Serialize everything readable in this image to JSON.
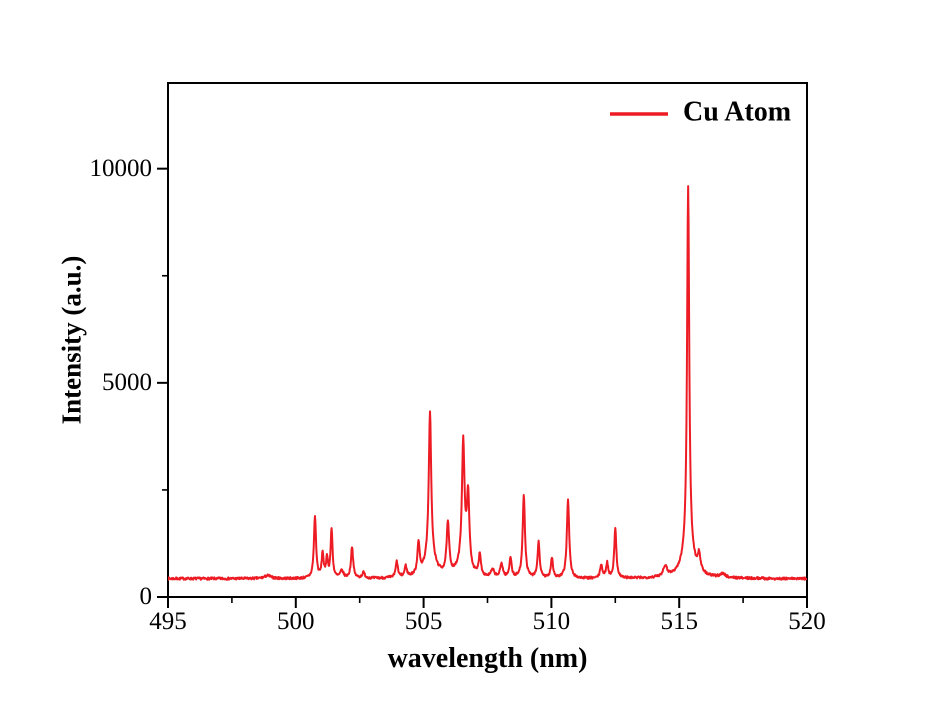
{
  "figure": {
    "legend": {
      "label": "Cu Atom"
    },
    "x_axis": {
      "label": "wavelength (nm)",
      "tick_labels": [
        "495",
        "500",
        "505",
        "510",
        "515",
        "520"
      ]
    },
    "y_axis": {
      "label": "Intensity (a.u.)",
      "tick_labels": [
        "0",
        "5000",
        "10000"
      ]
    }
  },
  "chart_data": {
    "type": "line",
    "title": "",
    "xlabel": "wavelength (nm)",
    "ylabel": "Intensity (a.u.)",
    "series_name": "Cu Atom",
    "line_color": "#ed1c24",
    "axis_color": "#000000",
    "xlim": [
      495,
      520
    ],
    "ylim": [
      0,
      12000
    ],
    "x_major_ticks": [
      495,
      500,
      505,
      510,
      515,
      520
    ],
    "x_minor_ticks": [
      497.5,
      502.5,
      507.5,
      512.5,
      517.5
    ],
    "y_major_ticks": [
      0,
      5000,
      10000
    ],
    "y_minor_ticks": [
      2500,
      7500
    ],
    "grid": false,
    "legend_position": "top-right-inside",
    "baseline_intensity": 430,
    "noise_amplitude": 28,
    "peaks": [
      {
        "x": 498.9,
        "apex": 500,
        "fwhm": 0.3
      },
      {
        "x": 500.75,
        "apex": 1870,
        "fwhm": 0.1
      },
      {
        "x": 501.05,
        "apex": 1000,
        "fwhm": 0.09
      },
      {
        "x": 501.22,
        "apex": 900,
        "fwhm": 0.08
      },
      {
        "x": 501.4,
        "apex": 1570,
        "fwhm": 0.09
      },
      {
        "x": 501.8,
        "apex": 600,
        "fwhm": 0.15
      },
      {
        "x": 502.2,
        "apex": 1170,
        "fwhm": 0.1
      },
      {
        "x": 502.65,
        "apex": 560,
        "fwhm": 0.12
      },
      {
        "x": 503.95,
        "apex": 800,
        "fwhm": 0.1
      },
      {
        "x": 504.3,
        "apex": 680,
        "fwhm": 0.1
      },
      {
        "x": 504.8,
        "apex": 1170,
        "fwhm": 0.1
      },
      {
        "x": 505.25,
        "apex": 4310,
        "fwhm": 0.11,
        "base_height": 480,
        "base_fwhm": 0.5
      },
      {
        "x": 505.95,
        "apex": 1615,
        "fwhm": 0.12
      },
      {
        "x": 506.55,
        "apex": 3560,
        "fwhm": 0.12,
        "base_height": 300,
        "base_fwhm": 0.5
      },
      {
        "x": 506.74,
        "apex": 2130,
        "fwhm": 0.12
      },
      {
        "x": 507.2,
        "apex": 950,
        "fwhm": 0.1
      },
      {
        "x": 507.7,
        "apex": 600,
        "fwhm": 0.15
      },
      {
        "x": 508.05,
        "apex": 750,
        "fwhm": 0.12
      },
      {
        "x": 508.4,
        "apex": 910,
        "fwhm": 0.1
      },
      {
        "x": 508.92,
        "apex": 2340,
        "fwhm": 0.11
      },
      {
        "x": 509.5,
        "apex": 1260,
        "fwhm": 0.1
      },
      {
        "x": 510.02,
        "apex": 910,
        "fwhm": 0.1
      },
      {
        "x": 510.65,
        "apex": 2270,
        "fwhm": 0.11
      },
      {
        "x": 511.95,
        "apex": 750,
        "fwhm": 0.1
      },
      {
        "x": 512.18,
        "apex": 780,
        "fwhm": 0.1
      },
      {
        "x": 512.5,
        "apex": 1570,
        "fwhm": 0.1
      },
      {
        "x": 514.45,
        "apex": 680,
        "fwhm": 0.18
      },
      {
        "x": 515.35,
        "apex": 9600,
        "fwhm": 0.1,
        "base_height": 570,
        "base_fwhm": 0.55
      },
      {
        "x": 515.78,
        "apex": 820,
        "fwhm": 0.12
      },
      {
        "x": 516.7,
        "apex": 520,
        "fwhm": 0.25
      }
    ]
  }
}
